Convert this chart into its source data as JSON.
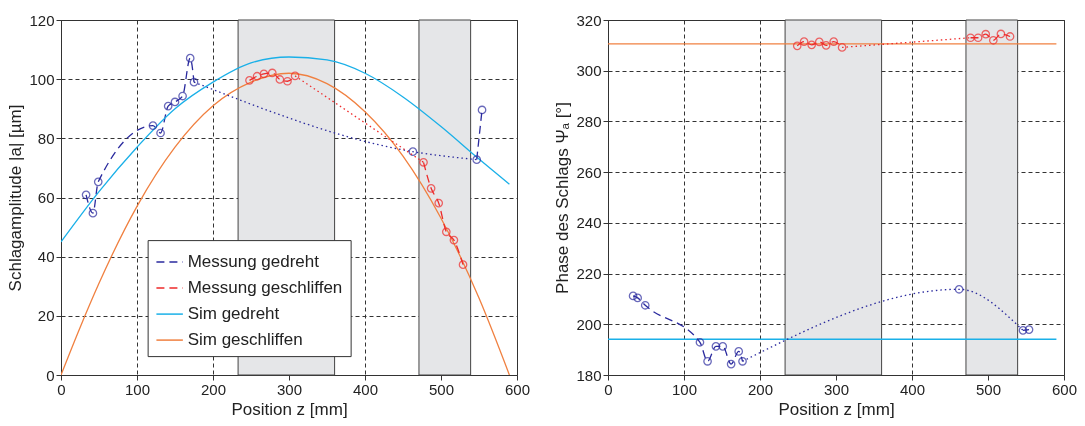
{
  "chart_data": [
    {
      "type": "line",
      "xlabel": "Position z [mm]",
      "ylabel": "Schlagamplitude |a| [µm]",
      "xlim": [
        0,
        600
      ],
      "xticks": [
        0,
        100,
        200,
        300,
        400,
        500,
        600
      ],
      "ylim": [
        0,
        120
      ],
      "yticks": [
        0,
        20,
        40,
        60,
        80,
        100,
        120
      ],
      "grid": true,
      "legend": "bottom",
      "bands": [
        {
          "axis": "x",
          "from": 233,
          "to": 360,
          "color": "#e5e6e8"
        },
        {
          "axis": "x",
          "from": 471,
          "to": 539,
          "color": "#e5e6e8"
        }
      ],
      "series": [
        {
          "name": "Messung gedreht",
          "color": "#2a2a9e",
          "line_style": "dashed",
          "marker": "circle",
          "x": [
            33,
            42,
            49,
            121,
            131,
            141,
            150,
            160,
            170,
            175
          ],
          "values": [
            60.9,
            54.7,
            65.3,
            84.3,
            81.8,
            90.9,
            92.3,
            94.3,
            107.1,
            99
          ]
        },
        {
          "name": "Messung geschliffen",
          "color": "#ee2a2a",
          "line_style": "dashed",
          "marker": "circle",
          "x": [
            248,
            258,
            267,
            278,
            288,
            298,
            308
          ],
          "values": [
            99.6,
            101,
            101.8,
            102.1,
            99.9,
            99.3,
            101.1
          ]
        },
        {
          "name": "Sim gedreht",
          "color": "#1ab0e8",
          "line_style": "solid",
          "x": [
            0,
            50,
            100,
            150,
            200,
            250,
            300,
            350,
            400,
            450,
            500,
            550,
            590
          ],
          "values": [
            45,
            62,
            77,
            90,
            99,
            105.5,
            107.5,
            106.5,
            102,
            94,
            84,
            73,
            64.5
          ]
        },
        {
          "name": "Sim geschliffen",
          "color": "#f08040",
          "line_style": "solid",
          "x": [
            0,
            25,
            50,
            100,
            150,
            200,
            250,
            300,
            350,
            400,
            450,
            500,
            550,
            590
          ],
          "values": [
            0,
            16,
            31,
            57,
            77,
            91,
            99,
            102,
            98.5,
            89,
            74,
            53,
            26,
            0
          ]
        },
        {
          "color": "#2a2a9e",
          "line_style": "dotted",
          "x": [
            175,
            463,
            547
          ],
          "values": [
            99,
            75.5,
            72.8
          ]
        },
        {
          "color": "#2a2a9e",
          "line_style": "dashed",
          "marker": "circle",
          "x": [
            463
          ],
          "values": [
            75.5
          ]
        },
        {
          "color": "#2a2a9e",
          "line_style": "dashed",
          "marker": "circle",
          "x": [
            547,
            554
          ],
          "values": [
            72.8,
            89.6
          ]
        },
        {
          "color": "#ee2a2a",
          "line_style": "dotted",
          "x": [
            308,
            477
          ],
          "values": [
            101.1,
            71.9
          ]
        },
        {
          "color": "#ee2a2a",
          "line_style": "dashed",
          "marker": "circle",
          "x": [
            477,
            487,
            497,
            507,
            517,
            529
          ],
          "values": [
            71.9,
            63.1,
            58.1,
            48.4,
            45.6,
            37.3
          ]
        }
      ]
    },
    {
      "type": "line",
      "xlabel": "Position z [mm]",
      "ylabel": "Phase des Schlags Ψₐ [°]",
      "xlim": [
        0,
        600
      ],
      "xticks": [
        0,
        100,
        200,
        300,
        400,
        500,
        600
      ],
      "ylim": [
        180,
        320
      ],
      "yticks": [
        180,
        200,
        220,
        240,
        260,
        280,
        300,
        320
      ],
      "grid": true,
      "bands": [
        {
          "axis": "x",
          "from": 233,
          "to": 360,
          "color": "#e5e6e8"
        },
        {
          "axis": "x",
          "from": 471,
          "to": 539,
          "color": "#e5e6e8"
        }
      ],
      "series": [
        {
          "color": "#1ab0e8",
          "line_style": "solid",
          "x": [
            0,
            590
          ],
          "values": [
            194.1,
            194.1
          ]
        },
        {
          "color": "#f08040",
          "line_style": "solid",
          "x": [
            0,
            590
          ],
          "values": [
            310.6,
            310.6
          ]
        },
        {
          "color": "#2a2a9e",
          "line_style": "dashed",
          "marker": "circle",
          "x": [
            33,
            39,
            49,
            121,
            131,
            142,
            151,
            162,
            172,
            177
          ],
          "values": [
            211.2,
            210.4,
            207.5,
            192.9,
            185.4,
            191.3,
            191.3,
            184.3,
            189.3,
            185.4
          ]
        },
        {
          "color": "#2a2a9e",
          "line_style": "dotted",
          "x": [
            177,
            462,
            546
          ],
          "values": [
            185.4,
            213.8,
            197.6
          ]
        },
        {
          "color": "#2a2a9e",
          "line_style": "dashed",
          "marker": "circle",
          "x": [
            462
          ],
          "values": [
            213.8
          ]
        },
        {
          "color": "#2a2a9e",
          "line_style": "dashed",
          "marker": "circle",
          "x": [
            546,
            554
          ],
          "values": [
            197.6,
            197.9
          ]
        },
        {
          "color": "#ee2a2a",
          "line_style": "dashed",
          "marker": "circle",
          "x": [
            249,
            258,
            268,
            278,
            287,
            297,
            308
          ],
          "values": [
            309.8,
            311.5,
            310.2,
            311.4,
            310,
            311.5,
            309.2
          ]
        },
        {
          "color": "#ee2a2a",
          "line_style": "dotted",
          "x": [
            308,
            477
          ],
          "values": [
            309.2,
            313
          ]
        },
        {
          "color": "#ee2a2a",
          "line_style": "dashed",
          "marker": "circle",
          "x": [
            477,
            487,
            497,
            507,
            517,
            529
          ],
          "values": [
            313,
            313,
            314.4,
            312,
            314.5,
            313.5
          ]
        }
      ]
    }
  ]
}
